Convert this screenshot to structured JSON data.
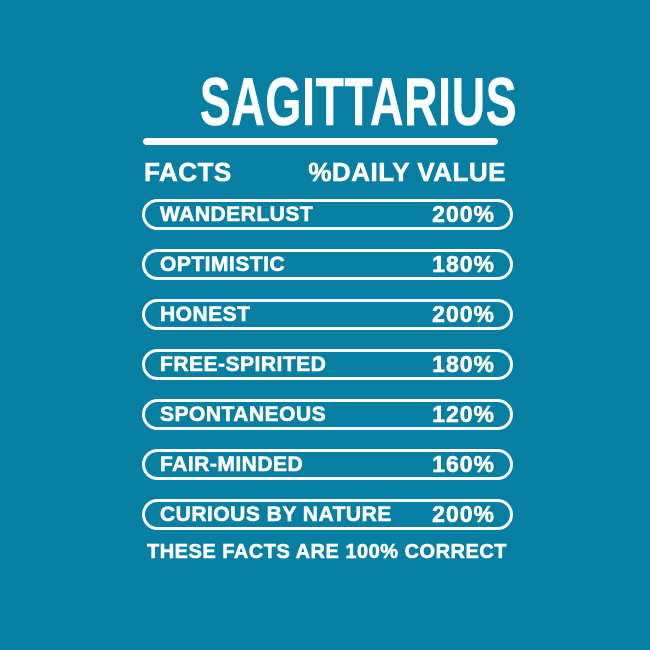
{
  "colors": {
    "background": "#077FA3",
    "text": "#FFFFFF"
  },
  "title": "SAGITTARIUS",
  "table": {
    "header_left": "FACTS",
    "header_right": "%DAILY VALUE",
    "rows": [
      {
        "label": "WANDERLUST",
        "value": "200%"
      },
      {
        "label": "OPTIMISTIC",
        "value": "180%"
      },
      {
        "label": "HONEST",
        "value": "200%"
      },
      {
        "label": "FREE-SPIRITED",
        "value": "180%"
      },
      {
        "label": "SPONTANEOUS",
        "value": "120%"
      },
      {
        "label": "FAIR-MINDED",
        "value": "160%"
      },
      {
        "label": "CURIOUS BY NATURE",
        "value": "200%"
      }
    ]
  },
  "footer": "THESE FACTS ARE 100% CORRECT"
}
